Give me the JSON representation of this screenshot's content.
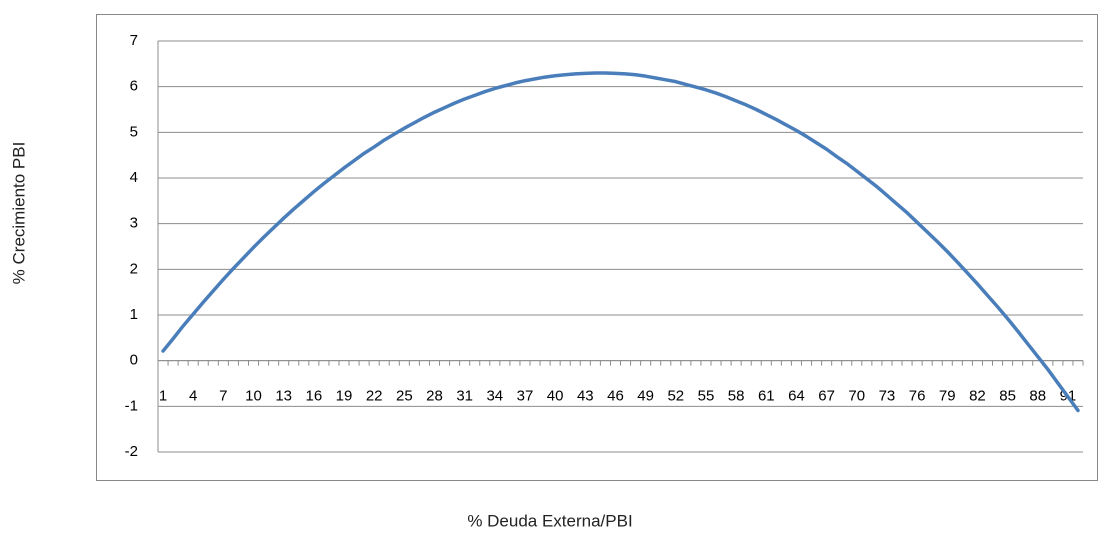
{
  "chart_data": {
    "type": "line",
    "x_label": "% Deuda Externa/PBI",
    "y_label": "% Crecimiento PBI",
    "categories": [
      "1",
      null,
      null,
      "4",
      null,
      null,
      "7",
      null,
      null,
      "10",
      null,
      null,
      "13",
      null,
      null,
      "16",
      null,
      null,
      "19",
      null,
      null,
      "22",
      null,
      null,
      "25",
      null,
      null,
      "28",
      null,
      null,
      "31",
      null,
      null,
      "34",
      null,
      null,
      "37",
      null,
      null,
      "40",
      null,
      null,
      "43",
      null,
      null,
      "46",
      null,
      null,
      "49",
      null,
      null,
      "52",
      null,
      null,
      "55",
      null,
      null,
      "58",
      null,
      null,
      "61",
      null,
      null,
      "64",
      null,
      null,
      "67",
      null,
      null,
      "70",
      null,
      null,
      "73",
      null,
      null,
      "76",
      null,
      null,
      "79",
      null,
      null,
      "82",
      null,
      null,
      "85",
      null,
      null,
      "88",
      null,
      null,
      "91",
      null
    ],
    "series": [
      {
        "name": "% Crecimiento PBI",
        "color": "#4a7ebb",
        "values": [
          0.21,
          0.48,
          0.76,
          1.02,
          1.28,
          1.53,
          1.78,
          2.02,
          2.25,
          2.48,
          2.7,
          2.91,
          3.12,
          3.32,
          3.51,
          3.7,
          3.88,
          4.05,
          4.22,
          4.38,
          4.54,
          4.68,
          4.83,
          4.96,
          5.09,
          5.21,
          5.33,
          5.44,
          5.54,
          5.64,
          5.73,
          5.81,
          5.89,
          5.96,
          6.02,
          6.08,
          6.13,
          6.17,
          6.21,
          6.24,
          6.26,
          6.28,
          6.29,
          6.3,
          6.3,
          6.29,
          6.28,
          6.26,
          6.23,
          6.19,
          6.15,
          6.11,
          6.05,
          5.99,
          5.93,
          5.86,
          5.78,
          5.69,
          5.6,
          5.5,
          5.39,
          5.28,
          5.16,
          5.04,
          4.91,
          4.77,
          4.63,
          4.47,
          4.32,
          4.15,
          3.98,
          3.81,
          3.62,
          3.43,
          3.24,
          3.03,
          2.82,
          2.61,
          2.39,
          2.16,
          1.92,
          1.68,
          1.43,
          1.18,
          0.92,
          0.65,
          0.37,
          0.09,
          -0.19,
          -0.49,
          -0.79,
          -1.09
        ]
      }
    ],
    "ylim": [
      -2,
      7
    ],
    "yticks": [
      -2,
      -1,
      0,
      1,
      2,
      3,
      4,
      5,
      6,
      7
    ],
    "grid": true
  }
}
